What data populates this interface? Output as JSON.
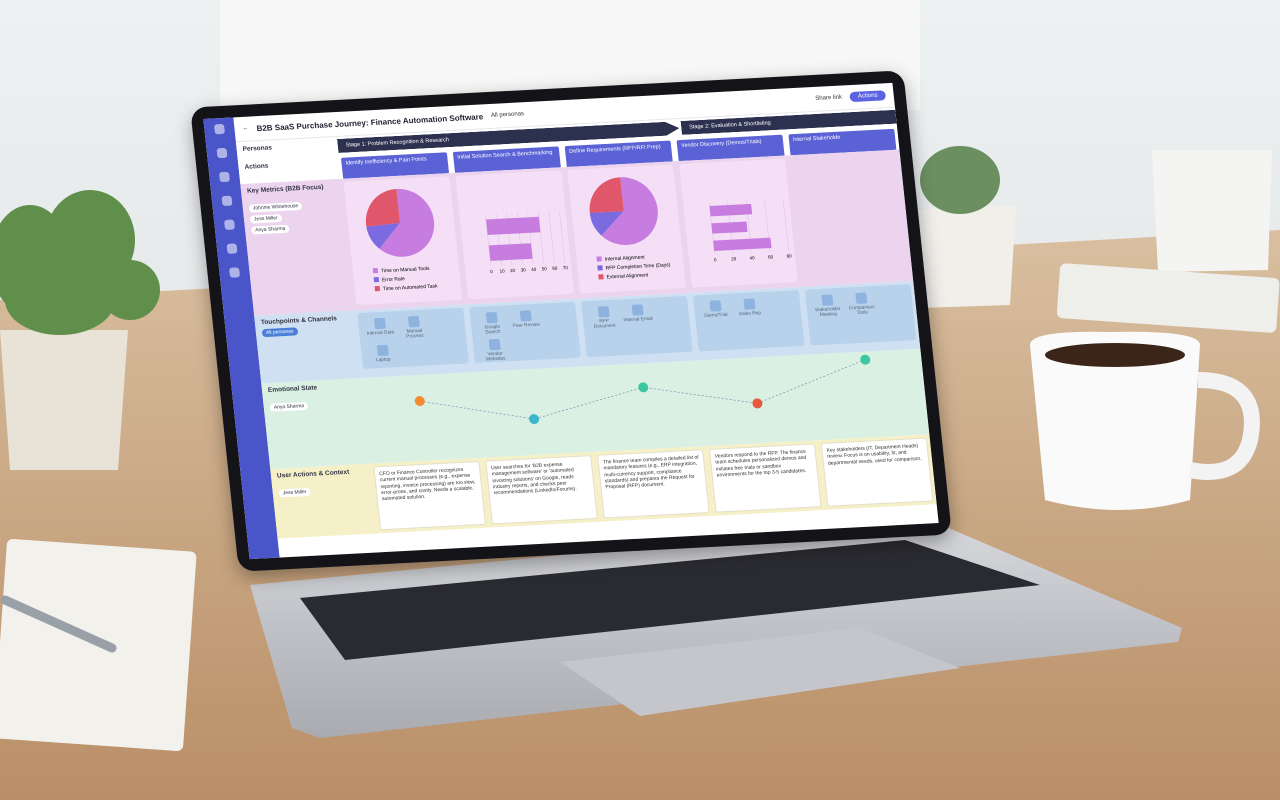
{
  "header": {
    "title": "B2B SaaS Purchase Journey: Finance Automation Software",
    "persona_filter": "All personas",
    "share": "Share link",
    "actions_button": "Actions"
  },
  "personas_label": "Personas",
  "stages": [
    "Stage 1: Problem Recognition & Research",
    "Stage 2: Evaluation & Shortlisting"
  ],
  "actions_label": "Actions",
  "actions": [
    "Identify Inefficiency & Pain Points",
    "Initial Solution Search & Benchmarking",
    "Define Requirements (RFP/RFI Prep)",
    "Vendor Discovery (Demos/Trials)",
    "Internal Stakeholde"
  ],
  "rows": {
    "metrics": {
      "label": "Key Metrics (B2B Focus)",
      "personas": [
        "Johnnie Whitehouse",
        "Jess Miller",
        "Anya Sharma"
      ]
    },
    "touchpoints": {
      "label": "Touchpoints & Channels",
      "filter": "All personas",
      "channels": [
        [
          "Internal Data",
          "Manual Process",
          "Laptop"
        ],
        [
          "Google Search",
          "Peer Review",
          "Vendor Websites"
        ],
        [
          "RFP Document",
          "Internal Email"
        ],
        [
          "Demo/Trial",
          "Sales Rep"
        ],
        [
          "Stakeholder Meeting",
          "Comparison Tools"
        ]
      ]
    },
    "emotional": {
      "label": "Emotional State",
      "persona": "Anya Sharma"
    },
    "user_actions": {
      "label": "User Actions & Context",
      "persona": "Jess Miller",
      "texts": [
        "CFO or Finance Controller recognizes current manual processes (e.g., expense reporting, invoice processing) are too slow, error-prone, and costly. Needs a scalable, automated solution.",
        "User searches for 'B2B expense management software' or 'automated invoicing solutions' on Google, reads industry reports, and checks peer recommendations (LinkedIn/Forums).",
        "The finance team compiles a detailed list of mandatory features (e.g., ERP integration, multi-currency support, compliance standards) and prepares the Request for Proposal (RFP) document.",
        "Vendors respond to the RFP. The finance team schedules personalized demos and initiates free trials or sandbox environments for the top 3-5 candidates.",
        "Key stakeholders (IT, Department Heads) review. Focus is on usability, fit, and departmental needs, used for comparison."
      ]
    }
  },
  "chart_data": [
    {
      "type": "pie",
      "categories": [
        "Time on Manual Tools",
        "Error Rate",
        "Time on Automated Task"
      ],
      "values": [
        62,
        12,
        26
      ],
      "colors": [
        "#c77de0",
        "#7b6ae0",
        "#e0566b"
      ]
    },
    {
      "type": "bar",
      "categories": [
        null,
        null
      ],
      "values": [
        50,
        40
      ],
      "color": "#c77de0",
      "xlim": [
        0,
        70
      ],
      "xticks": [
        0,
        10,
        20,
        30,
        40,
        50,
        60,
        70
      ]
    },
    {
      "type": "pie",
      "categories": [
        "Internal Alignment",
        "RFP Completion Time (Days)",
        "External Alignment"
      ],
      "values": [
        63,
        12,
        25
      ],
      "colors": [
        "#c77de0",
        "#7b6ae0",
        "#e0566b"
      ]
    },
    {
      "type": "bar",
      "categories": [
        null,
        null,
        null
      ],
      "values": [
        45,
        38,
        62
      ],
      "color": "#c77de0",
      "xlim": [
        0,
        80
      ],
      "xticks": [
        0,
        20,
        40,
        60,
        80
      ]
    }
  ]
}
